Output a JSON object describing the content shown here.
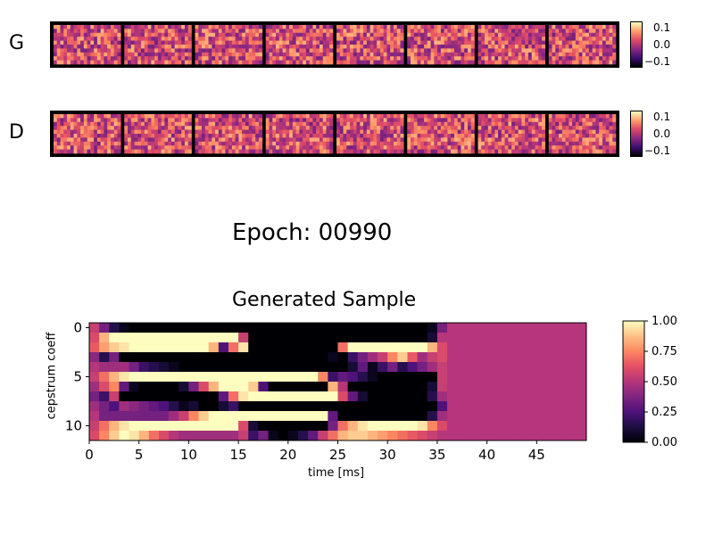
{
  "rows": [
    {
      "label": "G"
    },
    {
      "label": "D"
    }
  ],
  "weight_colorbar": {
    "ticks": [
      "0.1",
      "0.0",
      "−0.1"
    ]
  },
  "epoch_text": "Epoch: 00990",
  "chart_data": {
    "type": "heatmap",
    "title": "Generated Sample",
    "xlabel": "time [ms]",
    "ylabel": "cepstrum coeff",
    "xlim": [
      0,
      50
    ],
    "ylim": [
      -0.5,
      11.5
    ],
    "x_ticks": [
      "0",
      "5",
      "10",
      "15",
      "20",
      "25",
      "30",
      "35",
      "40",
      "45"
    ],
    "y_ticks": [
      "0",
      "5",
      "10"
    ],
    "colorbar_ticks": [
      "1.00",
      "0.75",
      "0.50",
      "0.25",
      "0.00"
    ],
    "colorbar_range": [
      0,
      1
    ],
    "colormap": "magma",
    "fill_value_after_35ms": 0.5,
    "data": [
      [
        0.55,
        0.35,
        0.15,
        0.05,
        0.0,
        0.0,
        0.0,
        0.0,
        0.0,
        0.0,
        0.0,
        0.0,
        0.0,
        0.0,
        0.0,
        0.0,
        0.0,
        0.0,
        0.0,
        0.0,
        0.0,
        0.0,
        0.0,
        0.0,
        0.0,
        0.0,
        0.0,
        0.0,
        0.0,
        0.0,
        0.0,
        0.0,
        0.0,
        0.0,
        0.05,
        0.35,
        0.5,
        0.5,
        0.5,
        0.5,
        0.5,
        0.5,
        0.5,
        0.5,
        0.5,
        0.5,
        0.5,
        0.5,
        0.5,
        0.5
      ],
      [
        0.6,
        0.85,
        1.0,
        1.0,
        1.0,
        1.0,
        1.0,
        1.0,
        1.0,
        1.0,
        1.0,
        1.0,
        1.0,
        1.0,
        1.0,
        0.55,
        0.0,
        0.0,
        0.0,
        0.0,
        0.0,
        0.0,
        0.0,
        0.0,
        0.0,
        0.0,
        0.0,
        0.0,
        0.0,
        0.0,
        0.0,
        0.0,
        0.0,
        0.0,
        0.1,
        0.5,
        0.5,
        0.5,
        0.5,
        0.5,
        0.5,
        0.5,
        0.5,
        0.5,
        0.5,
        0.5,
        0.5,
        0.5,
        0.5,
        0.5
      ],
      [
        0.65,
        0.8,
        0.9,
        0.95,
        1.0,
        1.0,
        1.0,
        1.0,
        1.0,
        1.0,
        1.0,
        1.0,
        0.85,
        0.25,
        0.7,
        0.95,
        0.0,
        0.0,
        0.0,
        0.0,
        0.0,
        0.0,
        0.0,
        0.0,
        0.0,
        0.7,
        1.0,
        1.0,
        1.0,
        1.0,
        1.0,
        1.0,
        1.0,
        1.0,
        0.85,
        0.6,
        0.5,
        0.5,
        0.5,
        0.5,
        0.5,
        0.5,
        0.5,
        0.5,
        0.5,
        0.5,
        0.5,
        0.5,
        0.5,
        0.5
      ],
      [
        0.4,
        0.15,
        0.35,
        0.0,
        0.0,
        0.0,
        0.0,
        0.0,
        0.0,
        0.0,
        0.0,
        0.0,
        0.0,
        0.0,
        0.0,
        0.0,
        0.0,
        0.0,
        0.0,
        0.0,
        0.0,
        0.0,
        0.0,
        0.0,
        0.05,
        0.0,
        0.2,
        0.35,
        0.45,
        0.55,
        0.75,
        0.9,
        0.65,
        0.45,
        0.55,
        0.6,
        0.5,
        0.5,
        0.5,
        0.5,
        0.5,
        0.5,
        0.5,
        0.5,
        0.5,
        0.5,
        0.5,
        0.5,
        0.5,
        0.5
      ],
      [
        0.5,
        0.45,
        0.45,
        0.45,
        0.35,
        0.2,
        0.15,
        0.1,
        0.05,
        0.0,
        0.0,
        0.0,
        0.0,
        0.0,
        0.0,
        0.0,
        0.0,
        0.0,
        0.0,
        0.0,
        0.0,
        0.0,
        0.0,
        0.0,
        0.0,
        0.0,
        0.1,
        0.3,
        0.05,
        0.2,
        0.35,
        0.15,
        0.25,
        0.35,
        0.45,
        0.55,
        0.5,
        0.5,
        0.5,
        0.5,
        0.5,
        0.5,
        0.5,
        0.5,
        0.5,
        0.5,
        0.5,
        0.5,
        0.5,
        0.5
      ],
      [
        0.55,
        0.7,
        0.85,
        0.95,
        1.0,
        1.0,
        1.0,
        1.0,
        1.0,
        1.0,
        1.0,
        1.0,
        1.0,
        1.0,
        1.0,
        1.0,
        1.0,
        1.0,
        1.0,
        1.0,
        1.0,
        1.0,
        1.0,
        0.75,
        0.2,
        0.3,
        0.25,
        0.15,
        0.05,
        0.0,
        0.0,
        0.0,
        0.0,
        0.0,
        0.0,
        0.55,
        0.5,
        0.5,
        0.5,
        0.5,
        0.5,
        0.5,
        0.5,
        0.5,
        0.5,
        0.5,
        0.5,
        0.5,
        0.5,
        0.5
      ],
      [
        0.45,
        0.6,
        0.75,
        0.3,
        0.05,
        0.0,
        0.0,
        0.0,
        0.0,
        0.1,
        0.35,
        0.6,
        0.85,
        1.0,
        1.0,
        1.0,
        0.9,
        0.25,
        0.0,
        0.0,
        0.0,
        0.0,
        0.0,
        0.0,
        0.85,
        0.5,
        0.0,
        0.0,
        0.0,
        0.0,
        0.0,
        0.0,
        0.0,
        0.0,
        0.1,
        0.55,
        0.5,
        0.5,
        0.5,
        0.5,
        0.5,
        0.5,
        0.5,
        0.5,
        0.5,
        0.5,
        0.5,
        0.5,
        0.5,
        0.5
      ],
      [
        0.35,
        0.2,
        0.55,
        0.0,
        0.0,
        0.0,
        0.0,
        0.0,
        0.0,
        0.0,
        0.0,
        0.0,
        0.0,
        0.3,
        0.7,
        0.95,
        1.0,
        1.0,
        1.0,
        1.0,
        1.0,
        1.0,
        1.0,
        1.0,
        1.0,
        0.6,
        0.3,
        0.1,
        0.0,
        0.0,
        0.0,
        0.0,
        0.0,
        0.0,
        0.15,
        0.45,
        0.5,
        0.5,
        0.5,
        0.5,
        0.5,
        0.5,
        0.5,
        0.5,
        0.5,
        0.5,
        0.5,
        0.5,
        0.5,
        0.5
      ],
      [
        0.45,
        0.35,
        0.25,
        0.45,
        0.4,
        0.35,
        0.3,
        0.25,
        0.15,
        0.05,
        0.1,
        0.0,
        0.0,
        0.1,
        0.2,
        0.0,
        0.0,
        0.0,
        0.0,
        0.0,
        0.0,
        0.0,
        0.0,
        0.0,
        0.0,
        0.0,
        0.0,
        0.0,
        0.0,
        0.0,
        0.0,
        0.0,
        0.0,
        0.0,
        0.0,
        0.25,
        0.5,
        0.5,
        0.5,
        0.5,
        0.5,
        0.5,
        0.5,
        0.5,
        0.5,
        0.5,
        0.5,
        0.5,
        0.5,
        0.5
      ],
      [
        0.5,
        0.35,
        0.35,
        0.35,
        0.35,
        0.35,
        0.35,
        0.35,
        0.45,
        0.55,
        0.75,
        0.9,
        1.0,
        1.0,
        1.0,
        1.0,
        1.0,
        1.0,
        1.0,
        1.0,
        1.0,
        1.0,
        1.0,
        1.0,
        0.3,
        0.0,
        0.0,
        0.0,
        0.0,
        0.0,
        0.0,
        0.0,
        0.0,
        0.0,
        0.15,
        0.45,
        0.5,
        0.5,
        0.5,
        0.5,
        0.5,
        0.5,
        0.5,
        0.5,
        0.5,
        0.5,
        0.5,
        0.5,
        0.5,
        0.5
      ],
      [
        0.55,
        0.7,
        0.85,
        0.95,
        1.0,
        1.0,
        1.0,
        1.0,
        1.0,
        1.0,
        1.0,
        1.0,
        1.0,
        1.0,
        1.0,
        0.6,
        0.1,
        0.0,
        0.0,
        0.0,
        0.0,
        0.0,
        0.0,
        0.0,
        0.35,
        0.7,
        0.85,
        0.95,
        1.0,
        1.0,
        1.0,
        1.0,
        1.0,
        0.95,
        0.75,
        0.6,
        0.5,
        0.5,
        0.5,
        0.5,
        0.5,
        0.5,
        0.5,
        0.5,
        0.5,
        0.5,
        0.5,
        0.5,
        0.5,
        0.5
      ],
      [
        0.6,
        0.75,
        0.9,
        1.0,
        0.95,
        0.85,
        0.7,
        0.6,
        0.5,
        0.45,
        0.45,
        0.45,
        0.45,
        0.45,
        0.45,
        0.55,
        0.2,
        0.35,
        0.05,
        0.0,
        0.05,
        0.15,
        0.3,
        0.55,
        0.7,
        0.85,
        0.9,
        0.9,
        0.85,
        0.8,
        0.75,
        0.7,
        0.65,
        0.6,
        0.55,
        0.5,
        0.5,
        0.5,
        0.5,
        0.5,
        0.5,
        0.5,
        0.5,
        0.5,
        0.5,
        0.5,
        0.5,
        0.5,
        0.5,
        0.5
      ]
    ]
  }
}
